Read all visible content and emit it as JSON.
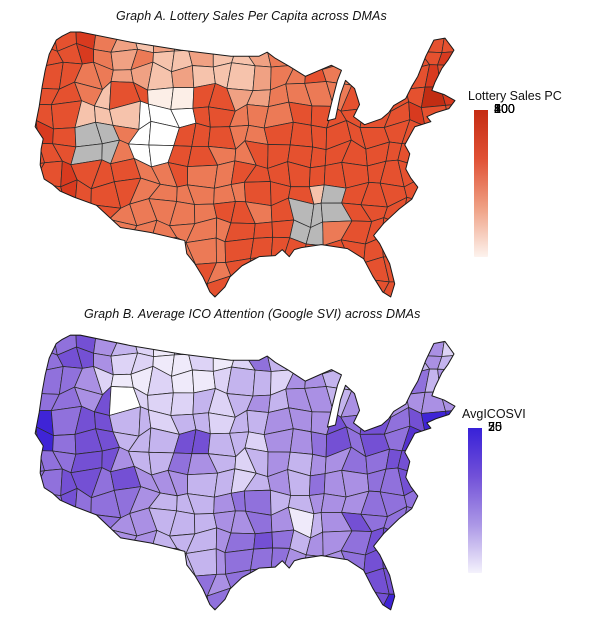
{
  "graph_a": {
    "title": "Graph A. Lottery Sales Per Capita across DMAs",
    "legend_title": "Lottery Sales PC",
    "legend_ticks": [
      "800",
      "400",
      "200",
      "100",
      "50",
      "20"
    ]
  },
  "graph_b": {
    "title": "Graph B. Average ICO Attention (Google SVI) across DMAs",
    "legend_title": "AvgICOSVI",
    "legend_ticks": [
      "75",
      "50",
      "25"
    ]
  },
  "chart_data": [
    {
      "type": "choropleth-map",
      "id": "map_a",
      "title": "Graph A. Lottery Sales Per Capita across DMAs",
      "region_unit": "DMA (contiguous United States)",
      "variable": "Lottery Sales Per Capita",
      "legend_title": "Lottery Sales PC",
      "scale": {
        "type": "log",
        "tick_values": [
          800,
          400,
          200,
          100,
          50,
          20
        ],
        "high_color": "#c42b12",
        "low_color": "#fdf3ee",
        "na_color": "#b8b8b8"
      },
      "gradient_stops": [
        "#c42b12",
        "#e05034",
        "#efa084",
        "#fdf3ee"
      ],
      "notes": "Most DMAs deep orange-red; gray NA cluster over Nevada and Alabama/Mississippi; white over Utah; pale pink over Montana/Idaho/Dakotas; darkest red around Boston.",
      "palette": {
        "a": "#ffffff",
        "b": "#fceee7",
        "c": "#f6c3ac",
        "d": "#f0a183",
        "e": "#ec7a56",
        "f": "#e5512f",
        "g": "#d83a1f",
        "h": "#c22d13",
        "x": "#b8b8b8"
      },
      "grid": [
        "ffffgedcdccccdeeeffffgff",
        "ffffgedeccdccdeeefeffffg",
        "ffffeeddcdcccdeefeffffgf",
        "ffffecffbbffddeeeefeffhg",
        "ffffcccaaaffeeeffffffgff",
        "ffgfxxeaafffeeffffffffff",
        "ffffxxeaaffeefffffffffff",
        "fffgfffeefeeffffffffffff",
        "fffgfffeeeeeefffcxffffff",
        "ffffffeeeeeffefxxxffffff",
        "ffffffeeeeeefffxxeffffff",
        "fffffffeeeeeffffffffffff",
        "fffffffffffeffffffffffff",
        "ffffffffffffffffffffffff"
      ]
    },
    {
      "type": "choropleth-map",
      "id": "map_b",
      "title": "Graph B. Average ICO Attention (Google SVI) across DMAs",
      "region_unit": "DMA (contiguous United States)",
      "variable": "Average ICO Attention (Google SVI)",
      "legend_title": "AvgICOSVI",
      "scale": {
        "type": "linear",
        "tick_values": [
          75,
          50,
          25
        ],
        "high_color": "#3620d8",
        "low_color": "#f4f2fc"
      },
      "gradient_stops": [
        "#3620d8",
        "#7150d8",
        "#ab97e6",
        "#f4f2fc"
      ],
      "notes": "Darkest blue-violet around San Francisco, Boston, NYC, Miami; dark Nevada/Denver/Chicago; palest lavender over Montana/Idaho/plains; small white patch in eastern Idaho.",
      "palette": {
        "A": "#ffffff",
        "B": "#efeafa",
        "C": "#ddd3f6",
        "D": "#c4b4ee",
        "E": "#aa90e4",
        "F": "#9071dc",
        "G": "#7450d4",
        "H": "#5532cf",
        "I": "#3f24d6"
      },
      "grid": [
        "FFFFGEDCBCBBCDDDEEEEEDEC",
        "FFFGGECCBBCBCFDDEEEEEDED",
        "FFFFECBBCBBCDDCEEDEEDFDE",
        "FFFFEGACCCDCDEDEEDEEEEEE",
        "FFIFGGDDCDDCDDEEEGFGFGII",
        "FFIFGGDDDGGDDCEEFGFGFHGH",
        "FFFFGGEDDFEDCDEDEEFFGGFF",
        "FFFGGFGEEEDDCDEDFEEFFGFF",
        "FFFGFFFEDDDEFFDDEEEFFFFF",
        "FFFFFFEEDDDEEFEBDEGFFFFF",
        "FFFFFFEEDDDEFGFDEEFGGFFF",
        "FFFFFFFEEDDEFFFEEEFGGGFF",
        "FFFFFFFFFFFEFFFFFFGGGFFF",
        "FFFFFFFFFFFFFFFFFFFGIHFF"
      ]
    }
  ]
}
